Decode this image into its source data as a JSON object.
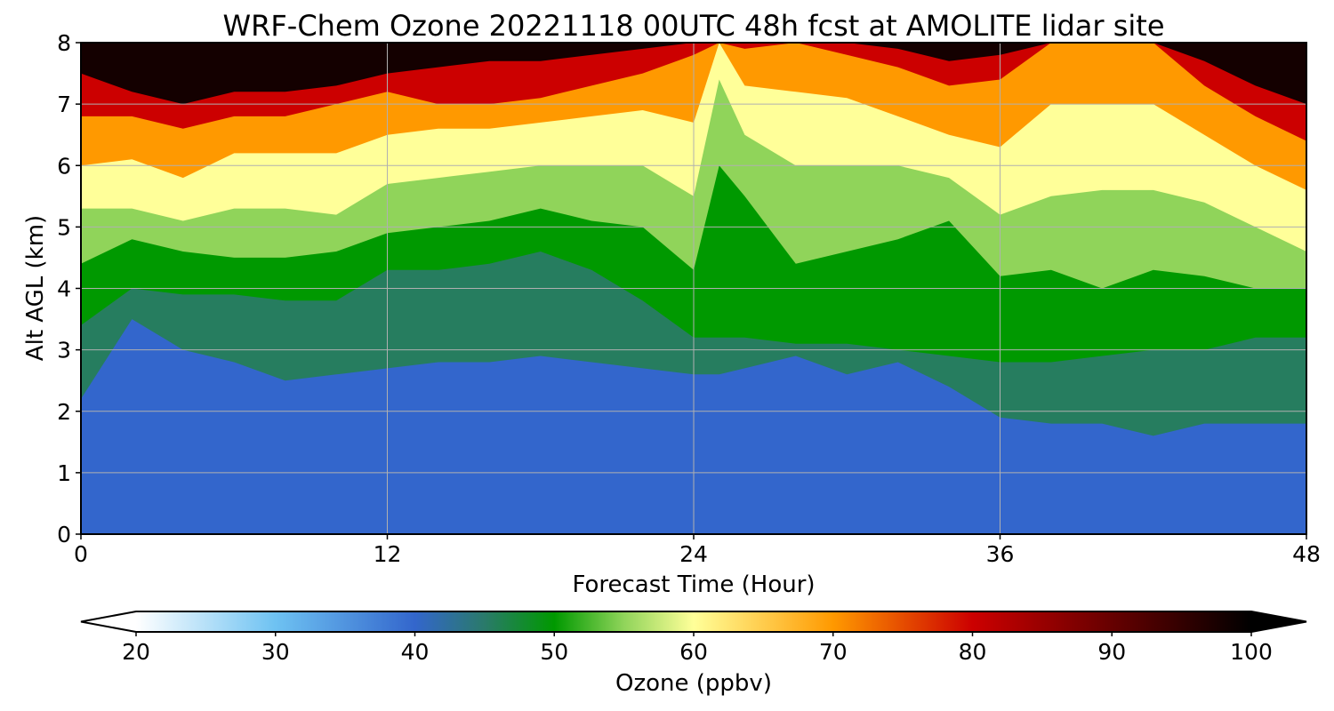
{
  "chart_data": {
    "type": "heatmap",
    "title": "WRF-Chem Ozone  20221118 00UTC 48h fcst at AMOLITE lidar site",
    "xlabel": "Forecast Time (Hour)",
    "ylabel": "Alt AGL (km)",
    "xlim": [
      0,
      48
    ],
    "ylim": [
      0,
      8
    ],
    "x_ticks": [
      "0",
      "12",
      "24",
      "36",
      "48"
    ],
    "y_ticks": [
      "0",
      "1",
      "2",
      "3",
      "4",
      "5",
      "6",
      "7",
      "8"
    ],
    "grid": true,
    "colorbar": {
      "label": "Ozone  (ppbv)",
      "range": [
        20,
        100
      ],
      "extend": "both",
      "ticks": [
        "20",
        "30",
        "40",
        "50",
        "60",
        "70",
        "80",
        "90",
        "100"
      ],
      "stops": [
        {
          "value": 20,
          "color": "#ffffff"
        },
        {
          "value": 30,
          "color": "#6ec2f2"
        },
        {
          "value": 40,
          "color": "#3366cc"
        },
        {
          "value": 45,
          "color": "#2a7a6a"
        },
        {
          "value": 50,
          "color": "#009900"
        },
        {
          "value": 55,
          "color": "#90d45a"
        },
        {
          "value": 60,
          "color": "#ffff99"
        },
        {
          "value": 70,
          "color": "#ff9900"
        },
        {
          "value": 80,
          "color": "#cc0000"
        },
        {
          "value": 90,
          "color": "#660000"
        },
        {
          "value": 100,
          "color": "#000000"
        }
      ]
    },
    "profile_boundaries_km": {
      "hours": [
        0,
        2,
        4,
        6,
        8,
        10,
        12,
        14,
        16,
        18,
        20,
        22,
        24,
        25,
        26,
        28,
        30,
        32,
        34,
        36,
        38,
        40,
        42,
        44,
        46,
        48
      ],
      "ppbv_45": [
        2.2,
        3.5,
        3.0,
        2.8,
        2.5,
        2.6,
        2.7,
        2.8,
        2.8,
        2.9,
        2.8,
        2.7,
        2.6,
        2.6,
        2.7,
        2.9,
        2.6,
        2.8,
        2.4,
        1.9,
        1.8,
        1.8,
        1.6,
        1.8,
        1.8,
        1.8
      ],
      "ppbv_50": [
        3.4,
        4.0,
        3.9,
        3.9,
        3.8,
        3.8,
        4.3,
        4.3,
        4.4,
        4.6,
        4.3,
        3.8,
        3.2,
        3.2,
        3.2,
        3.1,
        3.1,
        3.0,
        2.9,
        2.8,
        2.8,
        2.9,
        3.0,
        3.0,
        3.2,
        3.2
      ],
      "ppbv_55": [
        4.4,
        4.8,
        4.6,
        4.5,
        4.5,
        4.6,
        4.9,
        5.0,
        5.1,
        5.3,
        5.1,
        5.0,
        4.3,
        6.0,
        5.5,
        4.4,
        4.6,
        4.8,
        5.1,
        4.2,
        4.3,
        4.0,
        4.3,
        4.2,
        4.0,
        4.0
      ],
      "ppbv_60": [
        5.3,
        5.3,
        5.1,
        5.3,
        5.3,
        5.2,
        5.7,
        5.8,
        5.9,
        6.0,
        6.0,
        6.0,
        5.5,
        7.4,
        6.5,
        6.0,
        6.0,
        6.0,
        5.8,
        5.2,
        5.5,
        5.6,
        5.6,
        5.4,
        5.0,
        4.6
      ],
      "ppbv_70": [
        6.0,
        6.1,
        5.8,
        6.2,
        6.2,
        6.2,
        6.5,
        6.6,
        6.6,
        6.7,
        6.8,
        6.9,
        6.7,
        8.0,
        7.3,
        7.2,
        7.1,
        6.8,
        6.5,
        6.3,
        7.0,
        7.0,
        7.0,
        6.5,
        6.0,
        5.6
      ],
      "ppbv_80": [
        6.8,
        6.8,
        6.6,
        6.8,
        6.8,
        7.0,
        7.2,
        7.0,
        7.0,
        7.1,
        7.3,
        7.5,
        7.8,
        8.0,
        7.9,
        8.0,
        7.8,
        7.6,
        7.3,
        7.4,
        8.0,
        8.0,
        8.0,
        7.3,
        6.8,
        6.4
      ],
      "ppbv_95": [
        7.5,
        7.2,
        7.0,
        7.2,
        7.2,
        7.3,
        7.5,
        7.6,
        7.7,
        7.7,
        7.8,
        7.9,
        8.0,
        8.0,
        8.0,
        8.0,
        8.0,
        7.9,
        7.7,
        7.8,
        8.0,
        8.0,
        8.0,
        7.7,
        7.3,
        7.0
      ]
    }
  }
}
